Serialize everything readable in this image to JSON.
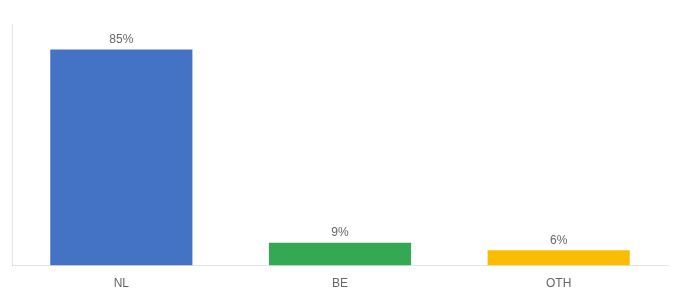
{
  "chart_data": {
    "type": "bar",
    "categories": [
      "NL",
      "BE",
      "OTH"
    ],
    "values": [
      85,
      9,
      6
    ],
    "value_labels": [
      "85%",
      "9%",
      "6%"
    ],
    "colors": [
      "#4472c4",
      "#34a853",
      "#fbbc04"
    ],
    "ylim": [
      0,
      95
    ],
    "grid": false,
    "legend": false,
    "data_labels": true,
    "tick_labels": "x"
  }
}
